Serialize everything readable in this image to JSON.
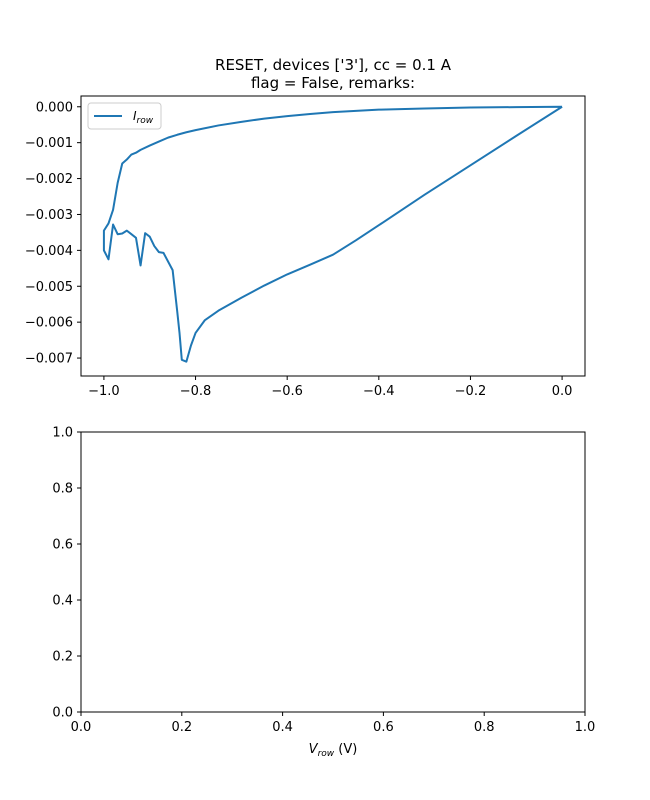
{
  "chart_data": [
    {
      "type": "line",
      "title": [
        "RESET, devices ['3'], cc = 0.1 A",
        "flag = False, remarks:"
      ],
      "xlim": [
        -1.05,
        0.05
      ],
      "ylim": [
        -0.0075,
        0.0003
      ],
      "x_ticks": [
        -1.0,
        -0.8,
        -0.6,
        -0.4,
        -0.2,
        0.0
      ],
      "x_tick_labels": [
        "−1.0",
        "−0.8",
        "−0.6",
        "−0.4",
        "−0.2",
        "0.0"
      ],
      "y_ticks": [
        0.0,
        -0.001,
        -0.002,
        -0.003,
        -0.004,
        -0.005,
        -0.006,
        -0.007
      ],
      "y_tick_labels": [
        "0.000",
        "−0.001",
        "−0.002",
        "−0.003",
        "−0.004",
        "−0.005",
        "−0.006",
        "−0.007"
      ],
      "grid": false,
      "legend_location": "upper-left",
      "series": [
        {
          "name": "I",
          "name_subscript": "row",
          "color": "#1f77b4",
          "x": [
            0.0,
            -0.1,
            -0.2,
            -0.3,
            -0.4,
            -0.45,
            -0.5,
            -0.55,
            -0.6,
            -0.65,
            -0.7,
            -0.75,
            -0.78,
            -0.8,
            -0.81,
            -0.82,
            -0.83,
            -0.835,
            -0.84,
            -0.85,
            -0.87,
            -0.88,
            -0.89,
            -0.9,
            -0.91,
            -0.92,
            -0.93,
            -0.94,
            -0.95,
            -0.96,
            -0.97,
            -0.98,
            -0.99,
            -1.0,
            -1.0,
            -0.99,
            -0.98,
            -0.97,
            -0.96,
            -0.95,
            -0.94,
            -0.93,
            -0.92,
            -0.9,
            -0.88,
            -0.86,
            -0.84,
            -0.82,
            -0.8,
            -0.75,
            -0.7,
            -0.65,
            -0.6,
            -0.55,
            -0.5,
            -0.4,
            -0.3,
            -0.2,
            -0.1,
            0.0
          ],
          "y": [
            0.0,
            -0.00081,
            -0.00163,
            -0.00245,
            -0.0033,
            -0.00372,
            -0.00412,
            -0.0044,
            -0.00467,
            -0.00498,
            -0.00532,
            -0.00568,
            -0.00595,
            -0.0063,
            -0.00665,
            -0.0071,
            -0.00705,
            -0.0063,
            -0.0057,
            -0.00455,
            -0.00407,
            -0.00405,
            -0.00388,
            -0.00362,
            -0.00352,
            -0.00442,
            -0.00365,
            -0.00355,
            -0.00345,
            -0.00353,
            -0.00355,
            -0.00328,
            -0.00425,
            -0.004,
            -0.00345,
            -0.00325,
            -0.00287,
            -0.00212,
            -0.00158,
            -0.00147,
            -0.00133,
            -0.00128,
            -0.0012,
            -0.00108,
            -0.00097,
            -0.00086,
            -0.00078,
            -0.00071,
            -0.00065,
            -0.00052,
            -0.00042,
            -0.00033,
            -0.00026,
            -0.0002,
            -0.00015,
            -8e-05,
            -5e-05,
            -2e-05,
            -1e-05,
            0.0
          ]
        }
      ]
    },
    {
      "type": "line",
      "xlim": [
        0.0,
        1.0
      ],
      "ylim": [
        0.0,
        1.0
      ],
      "x_ticks": [
        0.0,
        0.2,
        0.4,
        0.6,
        0.8,
        1.0
      ],
      "x_tick_labels": [
        "0.0",
        "0.2",
        "0.4",
        "0.6",
        "0.8",
        "1.0"
      ],
      "y_ticks": [
        0.0,
        0.2,
        0.4,
        0.6,
        0.8,
        1.0
      ],
      "y_tick_labels": [
        "0.0",
        "0.2",
        "0.4",
        "0.6",
        "0.8",
        "1.0"
      ],
      "xlabel": "V",
      "xlabel_subscript": "row",
      "xlabel_unit": " (V)",
      "grid": false,
      "series": []
    }
  ]
}
